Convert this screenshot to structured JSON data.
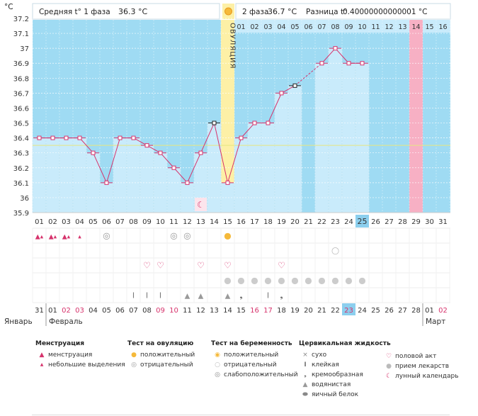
{
  "header": {
    "unit": "°C",
    "phase1_label": "Средняя t° 1 фаза",
    "phase1_value": "36.3 °C",
    "phase2_label": "2 фаза",
    "phase2_value": "36.7 °C",
    "diff_label": "Разница t°",
    "diff_value": "0.40000000000001 °C"
  },
  "chart_data": {
    "type": "line",
    "y_ticks": [
      "37.2",
      "37.1",
      "37",
      "36.9",
      "36.8",
      "36.7",
      "36.6",
      "36.5",
      "36.4",
      "36.3",
      "36.2",
      "36.1",
      "36",
      "35.9"
    ],
    "ylim": [
      35.9,
      37.2
    ],
    "cycle_days": [
      "01",
      "02",
      "03",
      "04",
      "05",
      "06",
      "07",
      "08",
      "09",
      "10",
      "11",
      "12",
      "13",
      "14",
      "15",
      "16",
      "17",
      "18",
      "19",
      "20",
      "21",
      "22",
      "23",
      "24",
      "25",
      "26",
      "27",
      "28",
      "29",
      "30",
      "31"
    ],
    "temperatures": [
      36.4,
      36.4,
      36.4,
      36.4,
      36.3,
      36.1,
      36.4,
      36.4,
      36.35,
      36.3,
      36.2,
      36.1,
      36.3,
      36.5,
      36.1,
      36.4,
      36.5,
      36.5,
      36.7,
      36.75,
      null,
      36.9,
      37.0,
      36.9,
      36.9,
      null,
      null,
      null,
      null,
      null,
      null
    ],
    "coverline": 36.35,
    "ovulation_day_index": 14,
    "ovulation_label": "ОВУЛЯЦИЯ",
    "phase2_days": [
      "01",
      "02",
      "03",
      "04",
      "05",
      "06",
      "07",
      "08",
      "09",
      "10",
      "11",
      "12",
      "13",
      "14",
      "15",
      "16"
    ],
    "phase2_highlight_index": 13,
    "current_day_index": 24,
    "calendar_dates": [
      "31",
      "01",
      "02",
      "03",
      "04",
      "05",
      "06",
      "07",
      "08",
      "09",
      "10",
      "11",
      "12",
      "13",
      "14",
      "15",
      "16",
      "17",
      "18",
      "19",
      "20",
      "21",
      "22",
      "23",
      "24",
      "25",
      "26",
      "27",
      "28",
      "01",
      "02"
    ],
    "calendar_weekend_indices": [
      2,
      3,
      9,
      10,
      16,
      17,
      23,
      30
    ],
    "months": [
      "Январь",
      "Февраль",
      "Март"
    ],
    "markers": {
      "menstruation_heavy": [
        0,
        1,
        2
      ],
      "menstruation_light": [
        3
      ],
      "ovulation_test_negative": [
        5,
        10,
        11
      ],
      "ovulation_test_positive": [
        14
      ],
      "pregnancy_test_negative": [
        22
      ],
      "intercourse": [
        8,
        9,
        12,
        14,
        18
      ],
      "medication": [
        14,
        15,
        16,
        17,
        18,
        19,
        20,
        21,
        22,
        23,
        24
      ],
      "cervical_sticky": [
        7,
        8,
        9,
        17
      ],
      "cervical_watery": [
        11,
        12
      ],
      "cervical_creamy": [
        15,
        18
      ],
      "cervical_eggwhite": [
        14
      ],
      "lunar": [
        12
      ]
    },
    "colors": {
      "bar": "#c9ebfb",
      "background": "#9fdbf3",
      "line": "#d6336c",
      "ovulation": "#fdf0a6",
      "highlight_day": "#f7b0c4",
      "current_day": "#8ccfee",
      "coverline": "#e6e680"
    }
  },
  "legend": {
    "menstruation": {
      "title": "Менструация",
      "items": [
        "менструация",
        "небольшие выделения"
      ]
    },
    "ovulation_test": {
      "title": "Тест на овуляцию",
      "items": [
        "положительный",
        "отрицательный"
      ]
    },
    "pregnancy_test": {
      "title": "Тест на беременность",
      "items": [
        "положительный",
        "отрицательный",
        "слабоположительный"
      ]
    },
    "cervical": {
      "title": "Цервикальная жидкость",
      "items": [
        "сухо",
        "клейкая",
        "кремообразная",
        "водянистая",
        "яичный белок"
      ]
    },
    "other": {
      "items": [
        "половой акт",
        "прием лекарств",
        "лунный календарь"
      ]
    }
  }
}
